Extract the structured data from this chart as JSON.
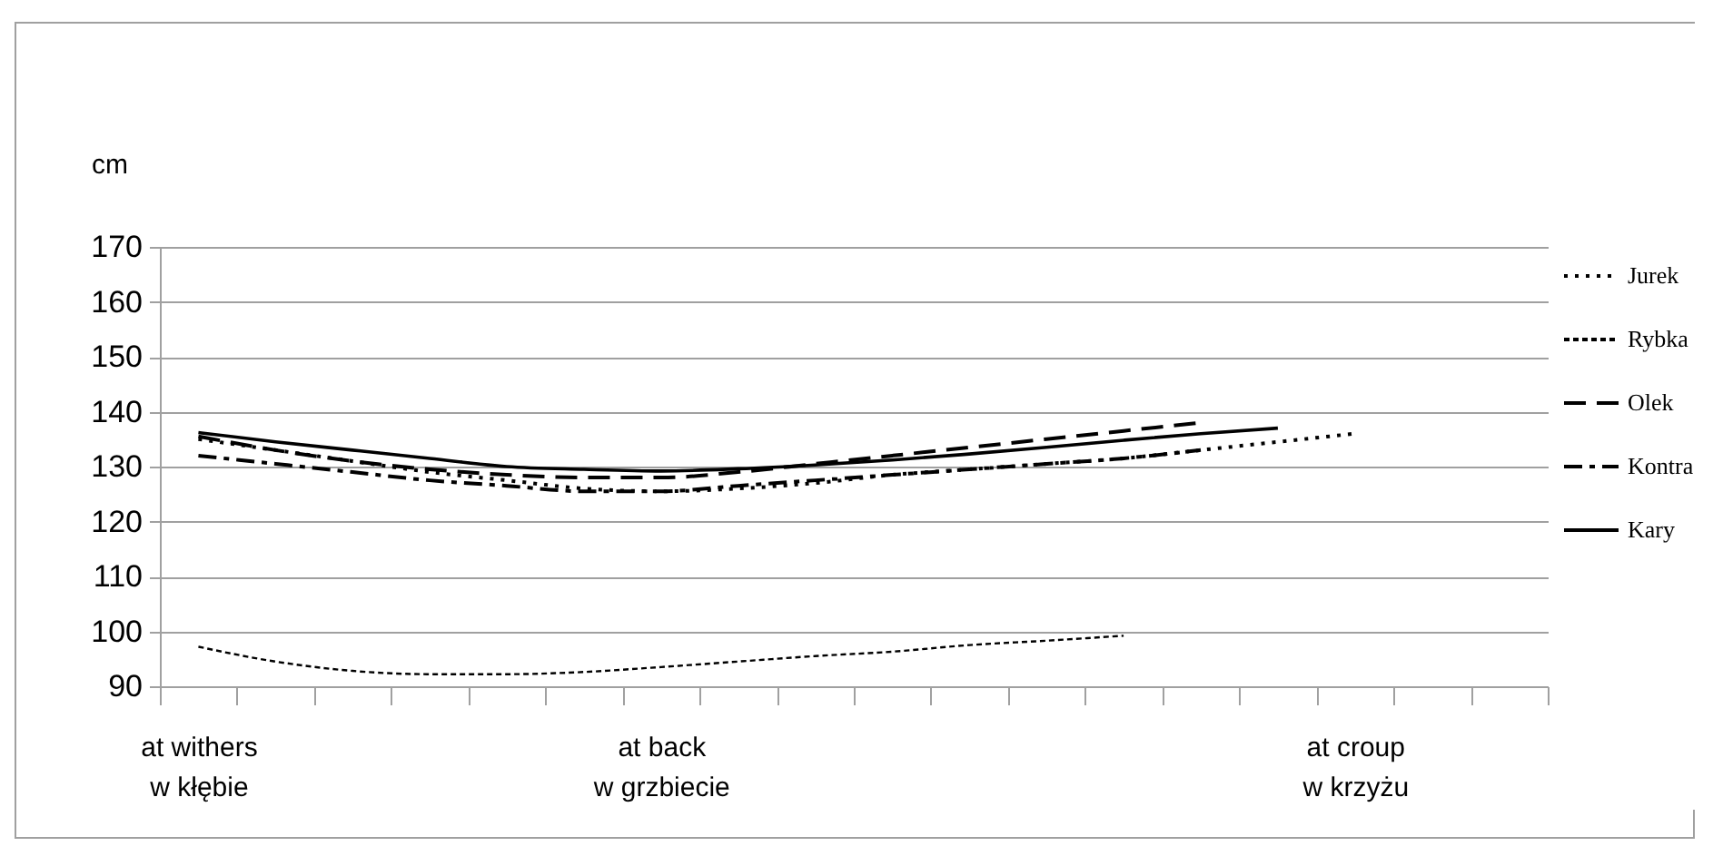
{
  "chart_data": {
    "type": "line",
    "ylabel": "cm",
    "categories": [
      "at withers\nw kłębie",
      null,
      null,
      null,
      null,
      null,
      "at back\nw grzbiecie",
      null,
      null,
      null,
      null,
      null,
      null,
      null,
      null,
      "at croup\nw krzyżu",
      null,
      null
    ],
    "ylim": [
      90,
      170
    ],
    "yticks": [
      90,
      100,
      110,
      120,
      130,
      140,
      150,
      160,
      170
    ],
    "grid": "y",
    "legend": "right",
    "series": [
      {
        "name": "Jurek",
        "color": "#000000",
        "line_style": "dotted",
        "values": [
          135,
          133,
          131,
          129,
          127.5,
          126,
          125.5,
          126,
          127,
          128.5,
          129.5,
          130.5,
          131.5,
          133,
          134.5,
          136,
          null,
          null
        ]
      },
      {
        "name": "Rybka",
        "color": "#000000",
        "line_style": "dashed",
        "values": [
          97.2,
          94.5,
          92.8,
          92.2,
          92.2,
          92.6,
          93.5,
          94.5,
          95.5,
          96.3,
          97.5,
          98.3,
          99.2,
          null,
          null,
          null,
          null,
          null
        ]
      },
      {
        "name": "Olek",
        "color": "#000000",
        "line_style": "longdash",
        "values": [
          135.5,
          133,
          131,
          129.5,
          128.5,
          128,
          128,
          129,
          130.5,
          132,
          133.5,
          135,
          136.5,
          138,
          null,
          null,
          null,
          null
        ]
      },
      {
        "name": "Kontra",
        "color": "#000000",
        "line_style": "dashdot",
        "values": [
          132,
          130.5,
          129,
          127.5,
          126.5,
          125.5,
          125.5,
          126.5,
          127.5,
          128.5,
          129.5,
          130.5,
          131.5,
          133,
          null,
          null,
          null,
          null
        ]
      },
      {
        "name": "Kary",
        "color": "#000000",
        "line_style": "solid",
        "values": [
          136.2,
          134.5,
          133,
          131.5,
          130,
          129.5,
          129.2,
          129.6,
          130.3,
          131.2,
          132.3,
          133.5,
          134.8,
          136,
          137,
          null,
          null,
          null
        ]
      }
    ]
  }
}
